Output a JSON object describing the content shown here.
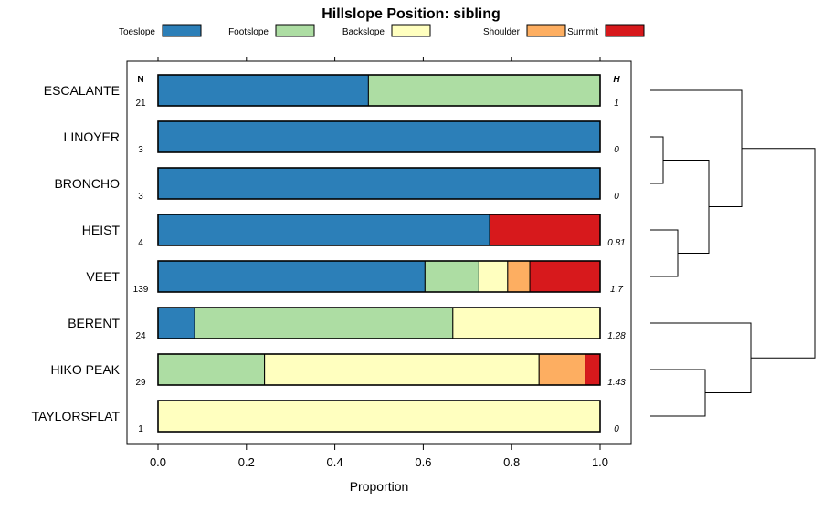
{
  "chart_data": {
    "type": "bar",
    "subtype": "stacked-horizontal-proportion",
    "title": "Hillslope Position: sibling",
    "xlabel": "Proportion",
    "ylabel": "",
    "xlim": [
      0,
      1
    ],
    "x_ticks": [
      "0.0",
      "0.2",
      "0.4",
      "0.6",
      "0.8",
      "1.0"
    ],
    "n_header": "N",
    "h_header": "H",
    "legend_position": "top",
    "series": [
      {
        "name": "Toeslope",
        "color": "#2c7fb8"
      },
      {
        "name": "Footslope",
        "color": "#addda3"
      },
      {
        "name": "Backslope",
        "color": "#ffffbf"
      },
      {
        "name": "Shoulder",
        "color": "#fdae61"
      },
      {
        "name": "Summit",
        "color": "#d7191c"
      }
    ],
    "categories": [
      "ESCALANTE",
      "LINOYER",
      "BRONCHO",
      "HEIST",
      "VEET",
      "BERENT",
      "HIKO PEAK",
      "TAYLORSFLAT"
    ],
    "n": [
      "21",
      "3",
      "3",
      "4",
      "139",
      "24",
      "29",
      "1"
    ],
    "h": [
      "1",
      "0",
      "0",
      "0.81",
      "1.7",
      "1.28",
      "1.43",
      "0"
    ],
    "values": [
      [
        0.476,
        0.524,
        0,
        0,
        0
      ],
      [
        1,
        0,
        0,
        0,
        0
      ],
      [
        1,
        0,
        0,
        0,
        0
      ],
      [
        0.75,
        0,
        0,
        0,
        0.25
      ],
      [
        0.604,
        0.122,
        0.065,
        0.05,
        0.159
      ],
      [
        0.083,
        0.584,
        0.333,
        0,
        0
      ],
      [
        0,
        0.241,
        0.621,
        0.104,
        0.034
      ],
      [
        0,
        0,
        1,
        0,
        0
      ]
    ],
    "dendrogram": {
      "orientation": "right",
      "merges": [
        {
          "a": "LINOYER",
          "b": "BRONCHO",
          "height": 0.07
        },
        {
          "a": "HEIST",
          "b": "VEET",
          "height": 0.15
        },
        {
          "a": "HIKO PEAK",
          "b": "TAYLORSFLAT",
          "height": 0.3
        },
        {
          "a": "LINOYER+BRONCHO",
          "b": "HEIST+VEET",
          "height": 0.32
        },
        {
          "a": "ESCALANTE",
          "b": "LINOYER+BRONCHO+HEIST+VEET",
          "height": 0.5
        },
        {
          "a": "BERENT",
          "b": "HIKO PEAK+TAYLORSFLAT",
          "height": 0.55
        },
        {
          "a": "upper-group",
          "b": "lower-group",
          "height": 0.9
        }
      ]
    }
  }
}
